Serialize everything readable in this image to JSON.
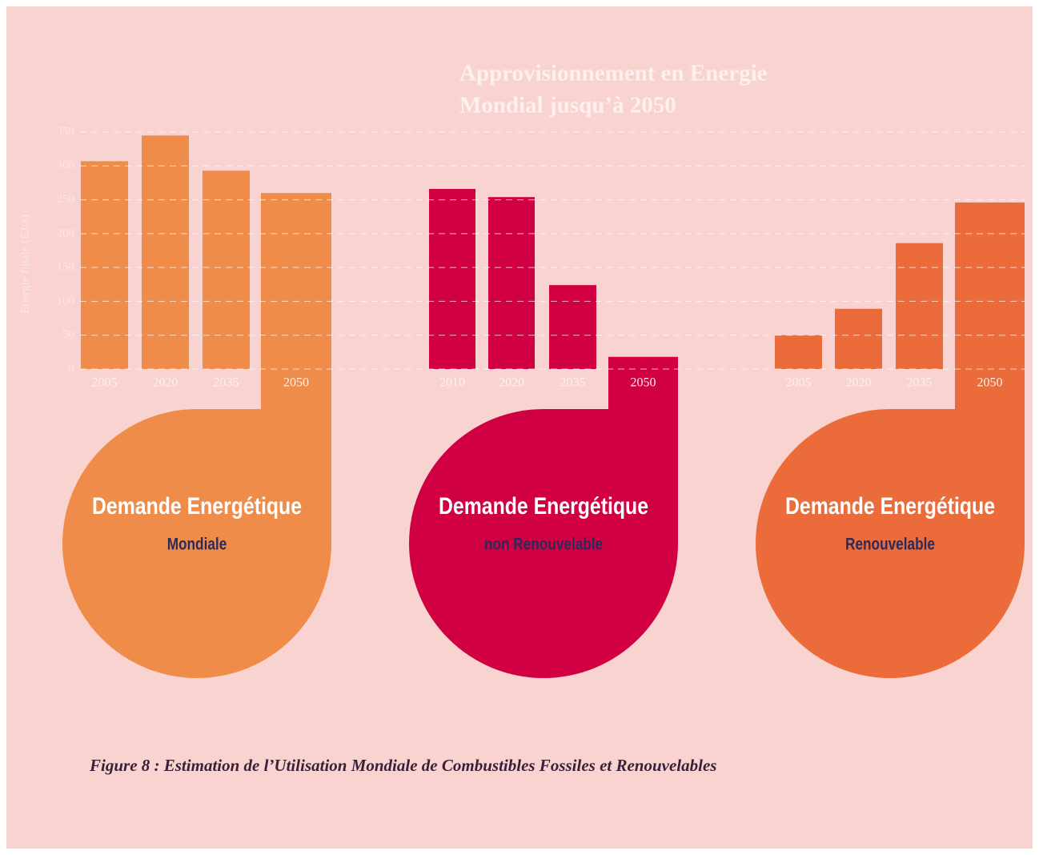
{
  "chart_data": {
    "type": "bar",
    "title": [
      "Approvisionnement en Energie",
      "Mondial jusqu’à 2050"
    ],
    "ylabel": "Énergie finale (EJ/a)",
    "ylim": [
      0,
      350
    ],
    "yticks": [
      0,
      50,
      100,
      150,
      200,
      250,
      300,
      350
    ],
    "grid": true,
    "panels": [
      {
        "name": "Demande Energétique",
        "subtitle": "Mondiale",
        "color": "#f08c4a",
        "categories": [
          "2005",
          "2020",
          "2035",
          "2050"
        ],
        "values": [
          307,
          345,
          293,
          260
        ]
      },
      {
        "name": "Demande Energétique",
        "subtitle": "non Renouvelable",
        "color": "#d10042",
        "categories": [
          "2010",
          "2020",
          "2035",
          "2050"
        ],
        "values": [
          266,
          254,
          124,
          18
        ]
      },
      {
        "name": "Demande Energétique",
        "subtitle": "Renouvelable",
        "color": "#eb6b3a",
        "categories": [
          "2005",
          "2020",
          "2035",
          "2050"
        ],
        "values": [
          50,
          89,
          186,
          246
        ]
      }
    ],
    "caption": "Figure 8 : Estimation de l’Utilisation Mondiale de Combustibles Fossiles et Renouvelables"
  }
}
